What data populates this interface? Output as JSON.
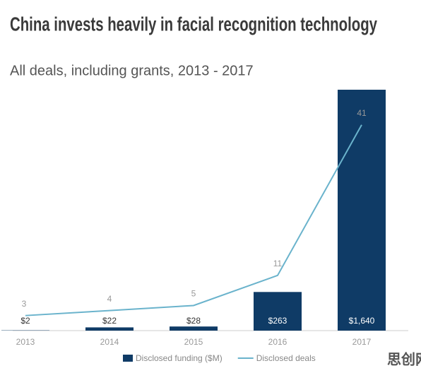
{
  "chart_data": {
    "type": "bar-line",
    "title": "China invests heavily in facial recognition technology",
    "subtitle": "All deals, including grants, 2013 - 2017",
    "categories": [
      "2013",
      "2014",
      "2015",
      "2016",
      "2017"
    ],
    "series": [
      {
        "name": "Disclosed funding ($M)",
        "type": "bar",
        "color": "#0f3b66",
        "values": [
          2,
          22,
          28,
          263,
          1640
        ],
        "value_labels": [
          "$2",
          "$22",
          "$28",
          "$263",
          "$1,640"
        ]
      },
      {
        "name": "Disclosed deals",
        "type": "line",
        "color": "#6ab3cc",
        "axis": "y2",
        "values": [
          3,
          4,
          5,
          11,
          41
        ]
      }
    ],
    "ylim": [
      0,
      1640
    ],
    "y2lim": [
      0,
      48
    ],
    "grid": false,
    "watermark": "思创网"
  }
}
